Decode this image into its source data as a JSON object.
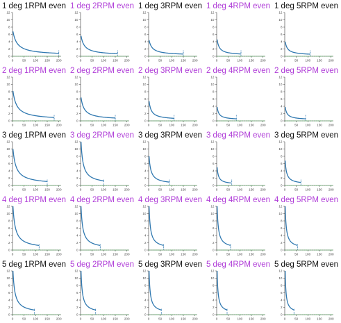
{
  "colors": {
    "title_black": "#111111",
    "title_purple": "#b03ed8",
    "curve": "#2f78b0",
    "baseline": "#3fae49",
    "axis": "#333333",
    "tick_text": "#444444"
  },
  "chart_data": [
    {
      "type": "line",
      "title": "1 deg 1RPM even",
      "title_color": "black",
      "row": 0,
      "col": 0,
      "xlim": [
        0,
        210
      ],
      "ylim": [
        0,
        12
      ],
      "xticks": [
        0,
        50,
        100,
        150,
        200
      ],
      "yticks": [
        0,
        2,
        4,
        6,
        8,
        10,
        12
      ],
      "y0": 6.8,
      "end_x": 200,
      "baseline": 0
    },
    {
      "type": "line",
      "title": "1 deg 2RPM even",
      "title_color": "purple",
      "row": 0,
      "col": 1,
      "xlim": [
        0,
        210
      ],
      "ylim": [
        0,
        12
      ],
      "xticks": [
        0,
        50,
        100,
        150,
        200
      ],
      "yticks": [
        0,
        2,
        4,
        6,
        8,
        10,
        12
      ],
      "y0": 5.6,
      "end_x": 160,
      "baseline": 0
    },
    {
      "type": "line",
      "title": "1 deg 3RPM even",
      "title_color": "black",
      "row": 0,
      "col": 2,
      "xlim": [
        0,
        210
      ],
      "ylim": [
        0,
        12
      ],
      "xticks": [
        0,
        50,
        100,
        150,
        200
      ],
      "yticks": [
        0,
        2,
        4,
        6,
        8,
        10,
        12
      ],
      "y0": 4.4,
      "end_x": 150,
      "baseline": 0
    },
    {
      "type": "line",
      "title": "1 deg 4RPM even",
      "title_color": "purple",
      "row": 0,
      "col": 3,
      "xlim": [
        0,
        210
      ],
      "ylim": [
        0,
        12
      ],
      "xticks": [
        0,
        50,
        100,
        150,
        200
      ],
      "yticks": [
        0,
        2,
        4,
        6,
        8,
        10,
        12
      ],
      "y0": 4.6,
      "end_x": 105,
      "baseline": 0
    },
    {
      "type": "line",
      "title": "1 deg 5RPM even",
      "title_color": "black",
      "row": 0,
      "col": 4,
      "xlim": [
        0,
        210
      ],
      "ylim": [
        0,
        12
      ],
      "xticks": [
        0,
        50,
        100,
        150,
        200
      ],
      "yticks": [
        0,
        2,
        4,
        6,
        8,
        10,
        12
      ],
      "y0": 4.0,
      "end_x": 110,
      "baseline": 0
    },
    {
      "type": "line",
      "title": "2 deg 1RPM even",
      "title_color": "purple",
      "row": 1,
      "col": 0,
      "xlim": [
        0,
        210
      ],
      "ylim": [
        0,
        12
      ],
      "xticks": [
        0,
        50,
        100,
        150,
        200
      ],
      "yticks": [
        0,
        2,
        4,
        6,
        8,
        10,
        12
      ],
      "y0": 8.2,
      "end_x": 180,
      "baseline": 0
    },
    {
      "type": "line",
      "title": "2 deg 2RPM even",
      "title_color": "purple",
      "row": 1,
      "col": 1,
      "xlim": [
        0,
        210
      ],
      "ylim": [
        0,
        12
      ],
      "xticks": [
        0,
        50,
        100,
        150,
        200
      ],
      "yticks": [
        0,
        2,
        4,
        6,
        8,
        10,
        12
      ],
      "y0": 6.4,
      "end_x": 150,
      "baseline": 0
    },
    {
      "type": "line",
      "title": "2 deg 3RPM even",
      "title_color": "purple",
      "row": 1,
      "col": 2,
      "xlim": [
        0,
        210
      ],
      "ylim": [
        0,
        12
      ],
      "xticks": [
        0,
        50,
        100,
        150,
        200
      ],
      "yticks": [
        0,
        2,
        4,
        6,
        8,
        10,
        12
      ],
      "y0": 5.4,
      "end_x": 110,
      "baseline": 0
    },
    {
      "type": "line",
      "title": "2 deg 4RPM even",
      "title_color": "purple",
      "row": 1,
      "col": 3,
      "xlim": [
        0,
        210
      ],
      "ylim": [
        0,
        12
      ],
      "xticks": [
        0,
        50,
        100,
        150,
        200
      ],
      "yticks": [
        0,
        2,
        4,
        6,
        8,
        10,
        12
      ],
      "y0": 3.8,
      "end_x": 85,
      "baseline": 0
    },
    {
      "type": "line",
      "title": "2 deg 5RPM even",
      "title_color": "purple",
      "row": 1,
      "col": 4,
      "xlim": [
        0,
        210
      ],
      "ylim": [
        0,
        12
      ],
      "xticks": [
        0,
        50,
        100,
        150,
        200
      ],
      "yticks": [
        0,
        2,
        4,
        6,
        8,
        10,
        12
      ],
      "y0": 3.8,
      "end_x": 90,
      "baseline": 0
    },
    {
      "type": "line",
      "title": "3 deg 1RPM even",
      "title_color": "black",
      "row": 2,
      "col": 0,
      "xlim": [
        0,
        210
      ],
      "ylim": [
        0,
        12
      ],
      "xticks": [
        0,
        50,
        100,
        150,
        200
      ],
      "yticks": [
        0,
        2,
        4,
        6,
        8,
        10,
        12
      ],
      "y0": 10.0,
      "end_x": 150,
      "baseline": 0
    },
    {
      "type": "line",
      "title": "3 deg 2RPM even",
      "title_color": "purple",
      "row": 2,
      "col": 1,
      "xlim": [
        0,
        210
      ],
      "ylim": [
        0,
        12
      ],
      "xticks": [
        0,
        50,
        100,
        150,
        200
      ],
      "yticks": [
        0,
        2,
        4,
        6,
        8,
        10,
        12
      ],
      "y0": 12.0,
      "end_x": 100,
      "baseline": 0
    },
    {
      "type": "line",
      "title": "3 deg 3RPM even",
      "title_color": "black",
      "row": 2,
      "col": 2,
      "xlim": [
        0,
        210
      ],
      "ylim": [
        0,
        12
      ],
      "xticks": [
        0,
        50,
        100,
        150,
        200
      ],
      "yticks": [
        0,
        2,
        4,
        6,
        8,
        10,
        12
      ],
      "y0": 8.0,
      "end_x": 90,
      "baseline": 0
    },
    {
      "type": "line",
      "title": "3 deg 4RPM even",
      "title_color": "purple",
      "row": 2,
      "col": 3,
      "xlim": [
        0,
        210
      ],
      "ylim": [
        0,
        12
      ],
      "xticks": [
        0,
        50,
        100,
        150,
        200
      ],
      "yticks": [
        0,
        2,
        4,
        6,
        8,
        10,
        12
      ],
      "y0": 5.0,
      "end_x": 65,
      "baseline": 0
    },
    {
      "type": "line",
      "title": "3 deg 5RPM even",
      "title_color": "black",
      "row": 2,
      "col": 4,
      "xlim": [
        0,
        210
      ],
      "ylim": [
        0,
        12
      ],
      "xticks": [
        0,
        50,
        100,
        150,
        200
      ],
      "yticks": [
        0,
        2,
        4,
        6,
        8,
        10,
        12
      ],
      "y0": 6.8,
      "end_x": 70,
      "baseline": 0
    },
    {
      "type": "line",
      "title": "4 deg 1RPM even",
      "title_color": "purple",
      "row": 3,
      "col": 0,
      "xlim": [
        0,
        210
      ],
      "ylim": [
        0,
        12
      ],
      "xticks": [
        0,
        50,
        100,
        150,
        200
      ],
      "yticks": [
        0,
        2,
        4,
        6,
        8,
        10,
        12
      ],
      "y0": 12.0,
      "end_x": 115,
      "baseline": 0
    },
    {
      "type": "line",
      "title": "4 deg 2RPM even",
      "title_color": "purple",
      "row": 3,
      "col": 1,
      "xlim": [
        0,
        210
      ],
      "ylim": [
        0,
        12
      ],
      "xticks": [
        0,
        50,
        100,
        150,
        200
      ],
      "yticks": [
        0,
        2,
        4,
        6,
        8,
        10,
        12
      ],
      "y0": 12.0,
      "end_x": 85,
      "baseline": 0
    },
    {
      "type": "line",
      "title": "4 deg 3RPM even",
      "title_color": "purple",
      "row": 3,
      "col": 2,
      "xlim": [
        0,
        210
      ],
      "ylim": [
        0,
        12
      ],
      "xticks": [
        0,
        50,
        100,
        150,
        200
      ],
      "yticks": [
        0,
        2,
        4,
        6,
        8,
        10,
        12
      ],
      "y0": 12.0,
      "end_x": 65,
      "baseline": 0
    },
    {
      "type": "line",
      "title": "4 deg 4RPM even",
      "title_color": "purple",
      "row": 3,
      "col": 3,
      "xlim": [
        0,
        210
      ],
      "ylim": [
        0,
        12
      ],
      "xticks": [
        0,
        50,
        100,
        150,
        200
      ],
      "yticks": [
        0,
        2,
        4,
        6,
        8,
        10,
        12
      ],
      "y0": 12.0,
      "end_x": 60,
      "baseline": 0
    },
    {
      "type": "line",
      "title": "4 deg 5RPM even",
      "title_color": "purple",
      "row": 3,
      "col": 4,
      "xlim": [
        0,
        210
      ],
      "ylim": [
        0,
        12
      ],
      "xticks": [
        0,
        50,
        100,
        150,
        200
      ],
      "yticks": [
        0,
        2,
        4,
        6,
        8,
        10,
        12
      ],
      "y0": 12.0,
      "end_x": 55,
      "baseline": 0
    },
    {
      "type": "line",
      "title": "5 deg 1RPM even",
      "title_color": "black",
      "row": 4,
      "col": 0,
      "xlim": [
        0,
        210
      ],
      "ylim": [
        0,
        12
      ],
      "xticks": [
        0,
        50,
        100,
        150,
        200
      ],
      "yticks": [
        0,
        2,
        4,
        6,
        8,
        10,
        12
      ],
      "y0": 12.0,
      "end_x": 95,
      "baseline": 0
    },
    {
      "type": "line",
      "title": "5 deg 2RPM even",
      "title_color": "purple",
      "row": 4,
      "col": 1,
      "xlim": [
        0,
        210
      ],
      "ylim": [
        0,
        12
      ],
      "xticks": [
        0,
        50,
        100,
        150,
        200
      ],
      "yticks": [
        0,
        2,
        4,
        6,
        8,
        10,
        12
      ],
      "y0": 12.0,
      "end_x": 65,
      "baseline": 0
    },
    {
      "type": "line",
      "title": "5 deg 3RPM even",
      "title_color": "black",
      "row": 4,
      "col": 2,
      "xlim": [
        0,
        210
      ],
      "ylim": [
        0,
        12
      ],
      "xticks": [
        0,
        50,
        100,
        150,
        200
      ],
      "yticks": [
        0,
        2,
        4,
        6,
        8,
        10,
        12
      ],
      "y0": 12.0,
      "end_x": 55,
      "baseline": 0
    },
    {
      "type": "line",
      "title": "5 deg 4RPM even",
      "title_color": "purple",
      "row": 4,
      "col": 3,
      "xlim": [
        0,
        210
      ],
      "ylim": [
        0,
        12
      ],
      "xticks": [
        0,
        50,
        100,
        150,
        200
      ],
      "yticks": [
        0,
        2,
        4,
        6,
        8,
        10,
        12
      ],
      "y0": 12.0,
      "end_x": 45,
      "baseline": 0
    },
    {
      "type": "line",
      "title": "5 deg 5RPM even",
      "title_color": "black",
      "row": 4,
      "col": 4,
      "xlim": [
        0,
        210
      ],
      "ylim": [
        0,
        12
      ],
      "xticks": [
        0,
        50,
        100,
        150,
        200
      ],
      "yticks": [
        0,
        2,
        4,
        6,
        8,
        10,
        12
      ],
      "y0": 12.0,
      "end_x": 40,
      "baseline": 0
    }
  ]
}
